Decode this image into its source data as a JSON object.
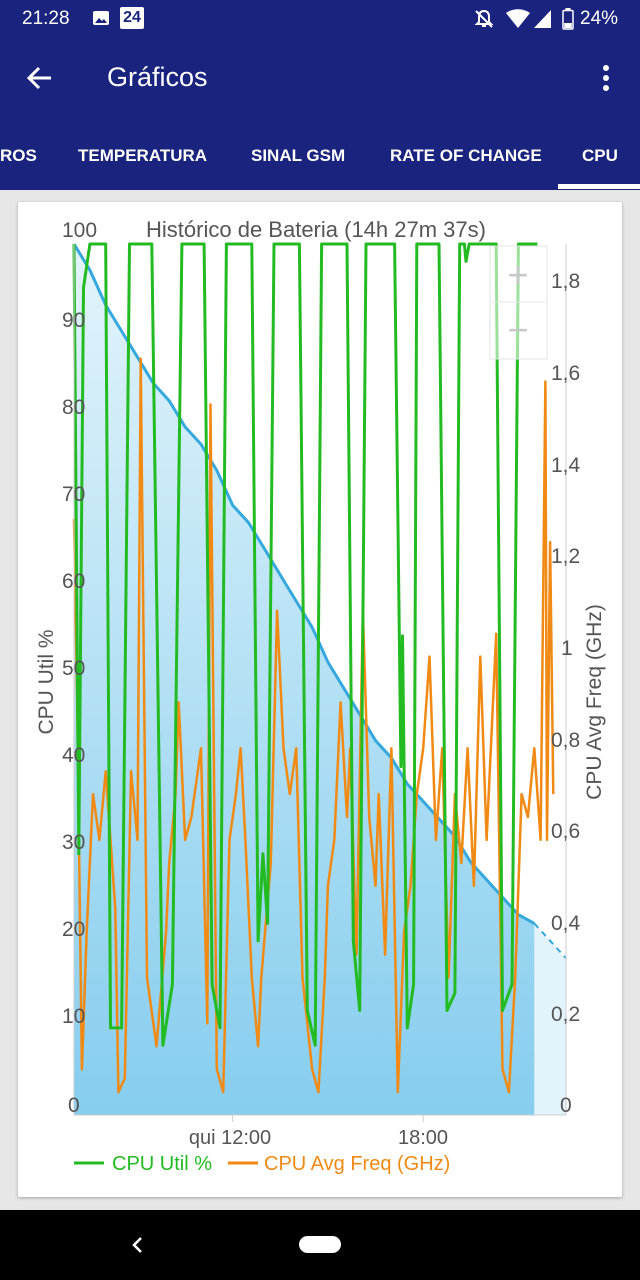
{
  "status_bar": {
    "time": "21:28",
    "calendar_badge": "24",
    "battery": "24%"
  },
  "app_bar": {
    "title": "Gráficos"
  },
  "tabs": [
    {
      "label": "ROS",
      "selected": false
    },
    {
      "label": "TEMPERATURA",
      "selected": false
    },
    {
      "label": "SINAL GSM",
      "selected": false
    },
    {
      "label": "RATE OF CHANGE",
      "selected": false
    },
    {
      "label": "CPU",
      "selected": true
    }
  ],
  "colors": {
    "primary": "#1a237e",
    "cpu_util": "#22bb22",
    "cpu_freq": "#f08a14",
    "battery_line": "#35a8dd",
    "battery_fill": "#86cdee"
  },
  "chart": {
    "title": "Histórico de Bateria (14h 27m 37s)",
    "ylabel_left": "CPU Util %",
    "ylabel_right": "CPU Avg Freq (GHz)",
    "y_ticks_left": [
      "100",
      "90",
      "80",
      "70",
      "60",
      "50",
      "40",
      "30",
      "20",
      "10",
      "0"
    ],
    "y_ticks_right": [
      "1,8",
      "1,6",
      "1,4",
      "1,2",
      "1",
      "0,8",
      "0,6",
      "0,4",
      "0,2",
      "0"
    ],
    "x_ticks": [
      "qui 12:00",
      "18:00"
    ],
    "legend": [
      "CPU Util %",
      "CPU Avg Freq (GHz)"
    ],
    "zoom_in": "+",
    "zoom_out": "−"
  },
  "chart_data": {
    "type": "line",
    "title": "Histórico de Bateria (14h 27m 37s)",
    "ylabel": "CPU Util %",
    "ylabel_right": "CPU Avg Freq (GHz)",
    "ylim": [
      0,
      100
    ],
    "ylim_right": [
      0,
      1.9
    ],
    "x_unit": "hours since start of the chart",
    "x_ticks": [
      {
        "label": "qui 12:00",
        "x": 5.0
      },
      {
        "label": "18:00",
        "x": 11.0
      }
    ],
    "xlim": [
      0,
      15.5
    ],
    "grid": false,
    "legend_position": "bottom",
    "series": [
      {
        "name": "CPU Util %",
        "axis": "left",
        "points": [
          [
            0.0,
            100
          ],
          [
            0.15,
            30
          ],
          [
            0.3,
            95
          ],
          [
            0.5,
            100
          ],
          [
            1.0,
            100
          ],
          [
            1.15,
            10
          ],
          [
            1.5,
            10
          ],
          [
            1.75,
            100
          ],
          [
            2.2,
            100
          ],
          [
            2.45,
            100
          ],
          [
            2.8,
            8
          ],
          [
            3.1,
            15
          ],
          [
            3.4,
            100
          ],
          [
            4.1,
            100
          ],
          [
            4.35,
            15
          ],
          [
            4.6,
            10
          ],
          [
            4.8,
            100
          ],
          [
            5.6,
            100
          ],
          [
            5.8,
            20
          ],
          [
            5.95,
            30
          ],
          [
            6.1,
            22
          ],
          [
            6.3,
            100
          ],
          [
            7.1,
            100
          ],
          [
            7.35,
            12
          ],
          [
            7.6,
            8
          ],
          [
            7.8,
            100
          ],
          [
            8.6,
            100
          ],
          [
            8.8,
            20
          ],
          [
            9.0,
            12
          ],
          [
            9.2,
            100
          ],
          [
            10.1,
            100
          ],
          [
            10.3,
            40
          ],
          [
            10.35,
            55
          ],
          [
            10.5,
            10
          ],
          [
            10.7,
            15
          ],
          [
            10.8,
            100
          ],
          [
            11.5,
            100
          ],
          [
            11.75,
            12
          ],
          [
            12.0,
            14
          ],
          [
            12.15,
            100
          ],
          [
            12.3,
            100
          ],
          [
            12.35,
            98
          ],
          [
            12.45,
            100
          ],
          [
            13.3,
            100
          ],
          [
            13.5,
            12
          ],
          [
            13.8,
            15
          ],
          [
            14.0,
            100
          ],
          [
            14.6,
            100
          ]
        ]
      },
      {
        "name": "CPU Avg Freq (GHz)",
        "axis": "right",
        "points": [
          [
            0.0,
            1.3
          ],
          [
            0.1,
            0.9
          ],
          [
            0.25,
            0.1
          ],
          [
            0.4,
            0.4
          ],
          [
            0.6,
            0.7
          ],
          [
            0.8,
            0.6
          ],
          [
            1.0,
            0.75
          ],
          [
            1.3,
            0.45
          ],
          [
            1.4,
            0.05
          ],
          [
            1.6,
            0.08
          ],
          [
            1.8,
            0.75
          ],
          [
            2.0,
            0.6
          ],
          [
            2.1,
            1.65
          ],
          [
            2.3,
            0.3
          ],
          [
            2.6,
            0.15
          ],
          [
            2.9,
            0.4
          ],
          [
            3.0,
            0.55
          ],
          [
            3.2,
            0.7
          ],
          [
            3.3,
            0.9
          ],
          [
            3.5,
            0.6
          ],
          [
            3.7,
            0.65
          ],
          [
            4.0,
            0.8
          ],
          [
            4.2,
            0.2
          ],
          [
            4.3,
            1.55
          ],
          [
            4.5,
            0.1
          ],
          [
            4.7,
            0.05
          ],
          [
            4.9,
            0.6
          ],
          [
            5.1,
            0.7
          ],
          [
            5.25,
            0.8
          ],
          [
            5.4,
            0.6
          ],
          [
            5.6,
            0.3
          ],
          [
            5.8,
            0.15
          ],
          [
            5.9,
            0.3
          ],
          [
            6.2,
            0.55
          ],
          [
            6.4,
            1.1
          ],
          [
            6.6,
            0.8
          ],
          [
            6.8,
            0.7
          ],
          [
            7.0,
            0.8
          ],
          [
            7.2,
            0.3
          ],
          [
            7.5,
            0.1
          ],
          [
            7.7,
            0.05
          ],
          [
            7.9,
            0.3
          ],
          [
            8.0,
            0.5
          ],
          [
            8.2,
            0.6
          ],
          [
            8.4,
            0.9
          ],
          [
            8.6,
            0.65
          ],
          [
            8.7,
            0.8
          ],
          [
            8.9,
            0.35
          ],
          [
            9.1,
            1.1
          ],
          [
            9.3,
            0.65
          ],
          [
            9.5,
            0.5
          ],
          [
            9.6,
            0.7
          ],
          [
            9.8,
            0.35
          ],
          [
            10.0,
            0.8
          ],
          [
            10.2,
            0.05
          ],
          [
            10.4,
            0.4
          ],
          [
            10.6,
            0.5
          ],
          [
            10.8,
            0.7
          ],
          [
            11.0,
            0.8
          ],
          [
            11.2,
            1.0
          ],
          [
            11.4,
            0.6
          ],
          [
            11.6,
            0.8
          ],
          [
            11.8,
            0.3
          ],
          [
            12.0,
            0.7
          ],
          [
            12.2,
            0.55
          ],
          [
            12.4,
            0.8
          ],
          [
            12.6,
            0.5
          ],
          [
            12.8,
            1.0
          ],
          [
            13.0,
            0.6
          ],
          [
            13.3,
            1.05
          ],
          [
            13.5,
            0.1
          ],
          [
            13.7,
            0.05
          ],
          [
            13.9,
            0.3
          ],
          [
            14.1,
            0.7
          ],
          [
            14.3,
            0.65
          ],
          [
            14.5,
            0.8
          ],
          [
            14.7,
            0.6
          ],
          [
            14.85,
            1.6
          ],
          [
            14.9,
            0.6
          ],
          [
            15.0,
            1.25
          ],
          [
            15.1,
            0.7
          ]
        ]
      },
      {
        "name": "Battery level",
        "axis": "left",
        "style": "filled area",
        "points": [
          [
            0.0,
            100
          ],
          [
            0.5,
            97
          ],
          [
            1.0,
            93
          ],
          [
            1.5,
            90
          ],
          [
            2.0,
            87
          ],
          [
            2.5,
            84
          ],
          [
            3.0,
            82
          ],
          [
            3.5,
            79
          ],
          [
            4.0,
            77
          ],
          [
            4.5,
            74
          ],
          [
            5.0,
            70
          ],
          [
            5.5,
            68
          ],
          [
            6.0,
            65
          ],
          [
            6.5,
            62
          ],
          [
            7.0,
            59
          ],
          [
            7.5,
            56
          ],
          [
            8.0,
            52
          ],
          [
            8.5,
            49
          ],
          [
            9.0,
            46
          ],
          [
            9.5,
            43
          ],
          [
            10.0,
            41
          ],
          [
            10.5,
            38
          ],
          [
            11.0,
            36
          ],
          [
            11.5,
            34
          ],
          [
            12.0,
            32
          ],
          [
            12.5,
            29
          ],
          [
            13.0,
            27
          ],
          [
            13.5,
            25
          ],
          [
            14.0,
            23
          ],
          [
            14.5,
            22
          ]
        ]
      },
      {
        "name": "Battery projection",
        "axis": "left",
        "style": "dashed",
        "points": [
          [
            14.5,
            22
          ],
          [
            15.5,
            18
          ]
        ]
      }
    ]
  }
}
